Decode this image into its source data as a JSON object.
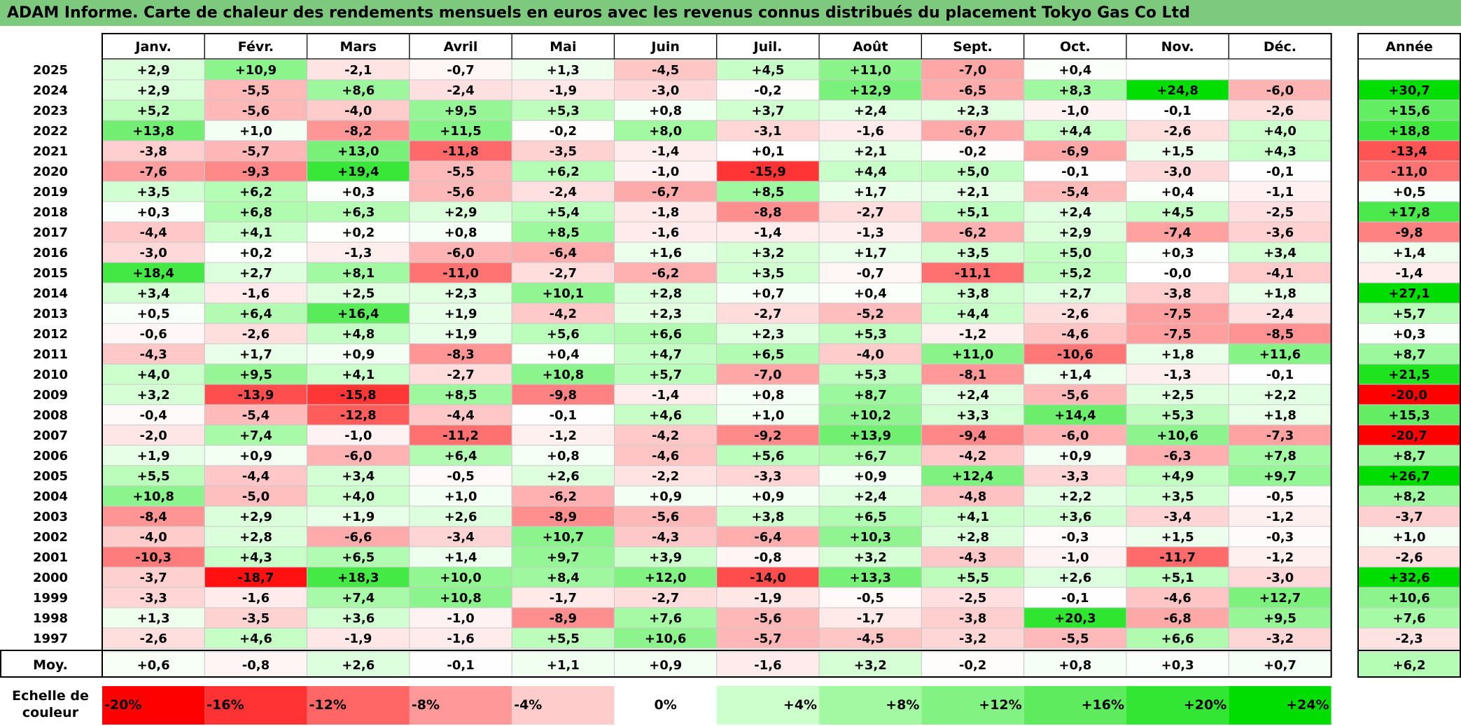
{
  "title": "ADAM Informe. Carte de chaleur des rendements mensuels en euros avec les revenus connus distribués du placement Tokyo Gas Co Ltd",
  "chart_data": {
    "type": "heatmap",
    "months": [
      "Janv.",
      "Févr.",
      "Mars",
      "Avril",
      "Mai",
      "Juin",
      "Juil.",
      "Août",
      "Sept.",
      "Oct.",
      "Nov.",
      "Déc."
    ],
    "annual_header": "Année",
    "years": [
      "2025",
      "2024",
      "2023",
      "2022",
      "2021",
      "2020",
      "2019",
      "2018",
      "2017",
      "2016",
      "2015",
      "2014",
      "2013",
      "2012",
      "2011",
      "2010",
      "2009",
      "2008",
      "2007",
      "2006",
      "2005",
      "2004",
      "2003",
      "2002",
      "2001",
      "2000",
      "1999",
      "1998",
      "1997"
    ],
    "values": [
      [
        2.9,
        10.9,
        -2.1,
        -0.7,
        1.3,
        -4.5,
        4.5,
        11.0,
        -7.0,
        0.4,
        null,
        null
      ],
      [
        2.9,
        -5.5,
        8.6,
        -2.4,
        -1.9,
        -3.0,
        -0.2,
        12.9,
        -6.5,
        8.3,
        24.8,
        -6.0
      ],
      [
        5.2,
        -5.6,
        -4.0,
        9.5,
        5.3,
        0.8,
        3.7,
        2.4,
        2.3,
        -1.0,
        -0.1,
        -2.6
      ],
      [
        13.8,
        1.0,
        -8.2,
        11.5,
        -0.2,
        8.0,
        -3.1,
        -1.6,
        -6.7,
        4.4,
        -2.6,
        4.0
      ],
      [
        -3.8,
        -5.7,
        13.0,
        -11.8,
        -3.5,
        -1.4,
        0.1,
        2.1,
        -0.2,
        -6.9,
        1.5,
        4.3
      ],
      [
        -7.6,
        -9.3,
        19.4,
        -5.5,
        6.2,
        -1.0,
        -15.9,
        4.4,
        5.0,
        -0.1,
        -3.0,
        -0.1
      ],
      [
        3.5,
        6.2,
        0.3,
        -5.6,
        -2.4,
        -6.7,
        8.5,
        1.7,
        2.1,
        -5.4,
        0.4,
        -1.1
      ],
      [
        0.3,
        6.8,
        6.3,
        2.9,
        5.4,
        -1.8,
        -8.8,
        -2.7,
        5.1,
        2.4,
        4.5,
        -2.5
      ],
      [
        -4.4,
        4.1,
        0.2,
        0.8,
        8.5,
        -1.6,
        -1.4,
        -1.3,
        -6.2,
        2.9,
        -7.4,
        -3.6
      ],
      [
        -3.0,
        0.2,
        -1.3,
        -6.0,
        -6.4,
        1.6,
        3.2,
        1.7,
        3.5,
        5.0,
        0.3,
        3.4
      ],
      [
        18.4,
        2.7,
        8.1,
        -11.0,
        -2.7,
        -6.2,
        3.5,
        -0.7,
        -11.1,
        5.2,
        -0.0,
        -4.1
      ],
      [
        3.4,
        -1.6,
        2.5,
        2.3,
        10.1,
        2.8,
        0.7,
        0.4,
        3.8,
        2.7,
        -3.8,
        1.8
      ],
      [
        0.5,
        6.4,
        16.4,
        1.9,
        -4.2,
        2.3,
        -2.7,
        -5.2,
        4.4,
        -2.6,
        -7.5,
        -2.4
      ],
      [
        -0.6,
        -2.6,
        4.8,
        1.9,
        5.6,
        6.6,
        2.3,
        5.3,
        -1.2,
        -4.6,
        -7.5,
        -8.5
      ],
      [
        -4.3,
        1.7,
        0.9,
        -8.3,
        0.4,
        4.7,
        6.5,
        -4.0,
        11.0,
        -10.6,
        1.8,
        11.6
      ],
      [
        4.0,
        9.5,
        4.1,
        -2.7,
        10.8,
        5.7,
        -7.0,
        5.3,
        -8.1,
        1.4,
        -1.3,
        -0.1
      ],
      [
        3.2,
        -13.9,
        -15.8,
        8.5,
        -9.8,
        -1.4,
        0.8,
        8.7,
        2.4,
        -5.6,
        2.5,
        2.2
      ],
      [
        -0.4,
        -5.4,
        -12.8,
        -4.4,
        -0.1,
        4.6,
        1.0,
        10.2,
        3.3,
        14.4,
        5.3,
        1.8
      ],
      [
        -2.0,
        7.4,
        -1.0,
        -11.2,
        -1.2,
        -4.2,
        -9.2,
        13.9,
        -9.4,
        -6.0,
        10.6,
        -7.3
      ],
      [
        1.9,
        0.9,
        -6.0,
        6.4,
        0.8,
        -4.6,
        5.6,
        6.7,
        -4.2,
        0.9,
        -6.3,
        7.8
      ],
      [
        5.5,
        -4.4,
        3.4,
        -0.5,
        2.6,
        -2.2,
        -3.3,
        0.9,
        12.4,
        -3.3,
        4.9,
        9.7
      ],
      [
        10.8,
        -5.0,
        4.0,
        1.0,
        -6.2,
        0.9,
        0.9,
        2.4,
        -4.8,
        2.2,
        3.5,
        -0.5
      ],
      [
        -8.4,
        2.9,
        1.9,
        2.6,
        -8.9,
        -5.6,
        3.8,
        6.5,
        4.1,
        3.6,
        -3.4,
        -1.2
      ],
      [
        -4.0,
        2.8,
        -6.6,
        -3.4,
        10.7,
        -4.3,
        -6.4,
        10.3,
        2.8,
        -0.3,
        1.5,
        -0.3
      ],
      [
        -10.3,
        4.3,
        6.5,
        1.4,
        9.7,
        3.9,
        -0.8,
        3.2,
        -4.3,
        -1.0,
        -11.7,
        -1.2
      ],
      [
        -3.7,
        -18.7,
        18.3,
        10.0,
        8.4,
        12.0,
        -14.0,
        13.3,
        5.5,
        2.6,
        5.1,
        -3.0
      ],
      [
        -3.3,
        -1.6,
        7.4,
        10.8,
        -1.7,
        -2.7,
        -1.9,
        -0.5,
        -2.5,
        -0.1,
        -4.6,
        12.7
      ],
      [
        1.3,
        -3.5,
        3.6,
        -1.0,
        -8.9,
        7.6,
        -5.6,
        -1.7,
        -3.8,
        20.3,
        -6.8,
        9.5
      ],
      [
        -2.6,
        4.6,
        -1.9,
        -1.6,
        5.5,
        10.6,
        -5.7,
        -4.5,
        -3.2,
        -5.5,
        6.6,
        -3.2
      ]
    ],
    "annual": [
      null,
      30.7,
      15.6,
      18.8,
      -13.4,
      -11.0,
      0.5,
      17.8,
      -9.8,
      1.4,
      -1.4,
      27.1,
      5.7,
      0.3,
      8.7,
      21.5,
      -20.0,
      15.3,
      -20.7,
      8.7,
      26.7,
      8.2,
      -3.7,
      1.0,
      -2.6,
      32.6,
      10.6,
      7.6,
      -2.3
    ],
    "average_label": "Moy.",
    "averages": [
      0.6,
      -0.8,
      2.6,
      -0.1,
      1.1,
      0.9,
      -1.6,
      3.2,
      -0.2,
      0.8,
      0.3,
      0.7
    ],
    "average_annual": 6.2,
    "scale_label_line1": "Echelle de",
    "scale_label_line2": "couleur",
    "scale": [
      {
        "label": "-20%",
        "value": -20,
        "color": "#ff0000"
      },
      {
        "label": "-16%",
        "value": -16,
        "color": "#ff3333"
      },
      {
        "label": "-12%",
        "value": -12,
        "color": "#ff6666"
      },
      {
        "label": "-8%",
        "value": -8,
        "color": "#ff9999"
      },
      {
        "label": "-4%",
        "value": -4,
        "color": "#ffcccc"
      },
      {
        "label": "0%",
        "value": 0,
        "color": "#ffffff"
      },
      {
        "label": "+4%",
        "value": 4,
        "color": "#ccffcc"
      },
      {
        "label": "+8%",
        "value": 8,
        "color": "#a2f9a2"
      },
      {
        "label": "+12%",
        "value": 12,
        "color": "#82f282"
      },
      {
        "label": "+16%",
        "value": 16,
        "color": "#5eec5e"
      },
      {
        "label": "+20%",
        "value": 20,
        "color": "#33e633"
      },
      {
        "label": "+24%",
        "value": 24,
        "color": "#00dd00"
      }
    ]
  }
}
